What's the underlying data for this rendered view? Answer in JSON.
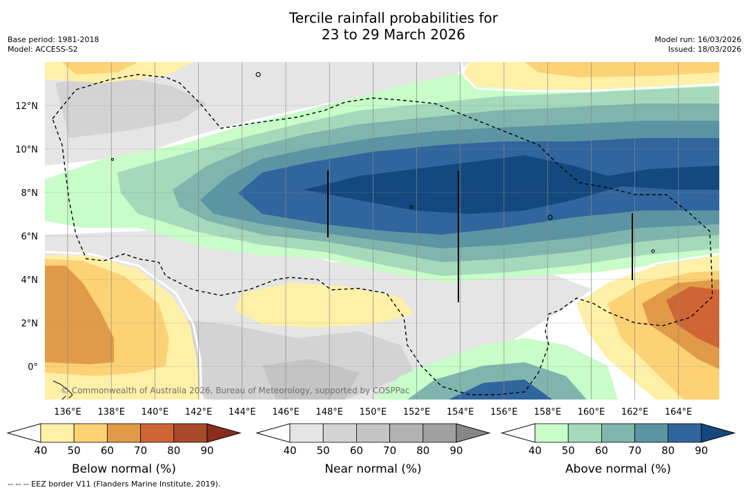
{
  "title": {
    "line1": "Tercile rainfall probabilities for",
    "line2": "23 to 29 March 2026"
  },
  "meta": {
    "base_period": "Base period: 1981-2018",
    "model": "Model: ACCESS-S2",
    "model_run": "Model run: 16/03/2026",
    "issued": "Issued: 18/03/2026"
  },
  "credit": "© Commonwealth of Australia 2026, Bureau of Meteorology, supported by COSPPac",
  "footer": "-- -- -- EEZ border V11 (Flanders Marine Institute, 2019).",
  "map": {
    "lon_labels": [
      "136°E",
      "138°E",
      "140°E",
      "142°E",
      "144°E",
      "146°E",
      "148°E",
      "150°E",
      "152°E",
      "154°E",
      "156°E",
      "158°E",
      "160°E",
      "162°E",
      "164°E"
    ],
    "lat_labels": [
      "12°N",
      "10°N",
      "8°N",
      "6°N",
      "4°N",
      "2°N",
      "0°"
    ]
  },
  "colorbars": [
    {
      "label": "Below normal (%)",
      "ticks": [
        "40",
        "50",
        "60",
        "70",
        "80",
        "90"
      ],
      "colors": [
        "#fff0a8",
        "#fdd275",
        "#e19b48",
        "#cf6535",
        "#a94a2a",
        "#8b2d1d"
      ]
    },
    {
      "label": "Near normal (%)",
      "ticks": [
        "40",
        "50",
        "60",
        "70",
        "80",
        "90"
      ],
      "colors": [
        "#e5e5e5",
        "#d3d3d3",
        "#c4c4c4",
        "#b2b2b2",
        "#a0a0a0",
        "#878787"
      ]
    },
    {
      "label": "Above normal (%)",
      "ticks": [
        "40",
        "50",
        "60",
        "70",
        "80",
        "90"
      ],
      "colors": [
        "#c8fcc8",
        "#a4d9bb",
        "#7fb5ad",
        "#5b94a3",
        "#31659d",
        "#14497f"
      ]
    }
  ],
  "colors": {
    "land": "#000000",
    "background": "#ffffff"
  }
}
